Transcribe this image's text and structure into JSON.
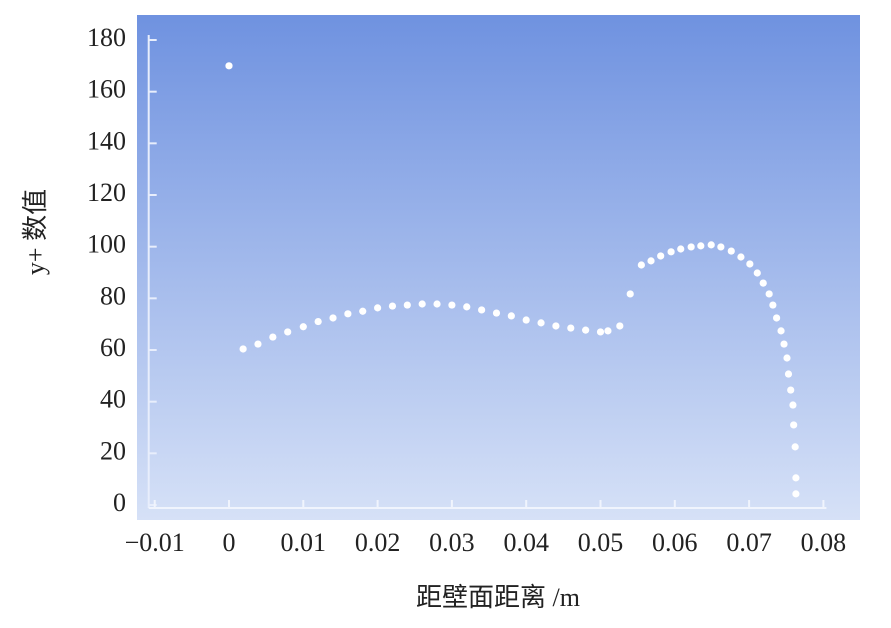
{
  "chart_data": {
    "type": "scatter",
    "x_label": "距壁面距离 /m",
    "y_label": "y+ 数值",
    "xlim": [
      -0.01,
      0.08
    ],
    "xticks": [
      {
        "value": -0.01,
        "label": "−0.01"
      },
      0,
      0.01,
      0.02,
      0.03,
      0.04,
      0.05,
      0.06,
      0.07,
      0.08
    ],
    "ylim": [
      0,
      180
    ],
    "yticks": [
      0,
      20,
      40,
      60,
      80,
      100,
      120,
      140,
      160,
      180
    ],
    "color": "#ffffff",
    "x": [
      0,
      0.0019,
      0.0039,
      0.0059,
      0.0079,
      0.01,
      0.012,
      0.014,
      0.016,
      0.018,
      0.02,
      0.022,
      0.024,
      0.026,
      0.028,
      0.03,
      0.032,
      0.034,
      0.036,
      0.038,
      0.04,
      0.042,
      0.044,
      0.046,
      0.048,
      0.05,
      0.051,
      0.0526,
      0.054,
      0.0555,
      0.0568,
      0.0581,
      0.0595,
      0.0608,
      0.0622,
      0.0635,
      0.0649,
      0.0662,
      0.0676,
      0.0689,
      0.0701,
      0.0711,
      0.0719,
      0.0727,
      0.0732,
      0.0737,
      0.0743,
      0.0747,
      0.0751,
      0.0753,
      0.0756,
      0.0759,
      0.076,
      0.0762,
      0.0763,
      0.0763
    ],
    "values": [
      170,
      60.4,
      62.3,
      65,
      67,
      69,
      71,
      72.4,
      74,
      75,
      76.3,
      77,
      77.4,
      77.8,
      77.8,
      77.4,
      76.7,
      75.5,
      74.3,
      73.2,
      71.6,
      70.5,
      69.3,
      68.5,
      67.7,
      67,
      67.4,
      69.3,
      81.7,
      92.9,
      94.5,
      96.4,
      98,
      99.1,
      99.9,
      100.3,
      100.7,
      99.9,
      98.3,
      96,
      93.3,
      89.8,
      85.9,
      81.7,
      77.4,
      72.4,
      67.4,
      62.3,
      56.9,
      50.7,
      44.5,
      38.7,
      31,
      22.5,
      10.5,
      4.3
    ]
  }
}
